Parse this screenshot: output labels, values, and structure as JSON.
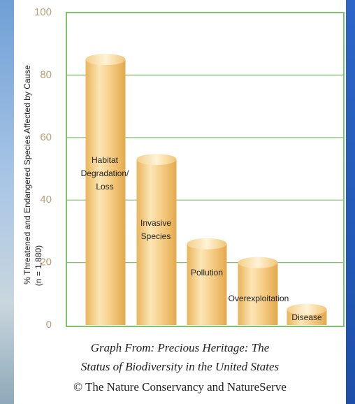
{
  "chart_data": {
    "type": "bar",
    "y_label": "% Threatened and Endangered Species Affected by Cause",
    "y_note": "(n = 1,880)",
    "categories": [
      "Habitat\nDegradation/\nLoss",
      "Invasive\nSpecies",
      "Pollution",
      "Overexploitation",
      "Disease"
    ],
    "values": [
      85,
      53,
      26,
      20,
      5
    ],
    "ylim": [
      0,
      100
    ],
    "yticks": [
      0,
      20,
      40,
      60,
      80,
      100
    ],
    "grid": true,
    "grid_color": "#7cc36a",
    "tick_color": "#b9a07a"
  },
  "caption": [
    "Graph From:  Precious Heritage:  The",
    "Status of Biodiversity in the United States",
    "© The Nature Conservancy and NatureServe"
  ]
}
